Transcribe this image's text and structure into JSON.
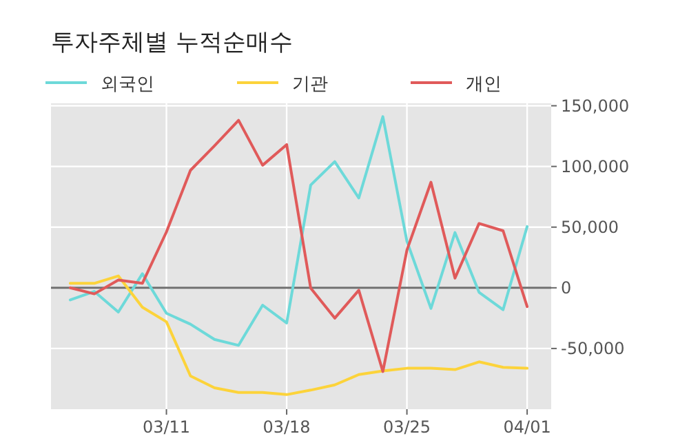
{
  "chart_data": {
    "type": "line",
    "title": "투자주체별 누적순매수",
    "categories": [
      null,
      null,
      null,
      null,
      "03/11",
      null,
      null,
      null,
      null,
      "03/18",
      null,
      null,
      null,
      null,
      "03/25",
      null,
      null,
      null,
      null,
      "04/01"
    ],
    "series": [
      {
        "name": "외국인",
        "color": "#6dd9d9",
        "values": [
          -10000,
          -3000,
          -20000,
          11600,
          -21000,
          -30000,
          -42500,
          -47400,
          -14300,
          -29000,
          84700,
          104000,
          74000,
          141000,
          38400,
          -17000,
          45500,
          -3700,
          -18000,
          50500
        ]
      },
      {
        "name": "기관",
        "color": "#fcd33a",
        "values": [
          3700,
          3700,
          9800,
          -16000,
          -28000,
          -72600,
          -82400,
          -86200,
          -86200,
          -88000,
          -84300,
          -80000,
          -71500,
          -68500,
          -66300,
          -66300,
          -67400,
          -61000,
          -65500,
          -66300
        ]
      },
      {
        "name": "개인",
        "color": "#e05a5a",
        "values": [
          0,
          -5000,
          6400,
          3700,
          46000,
          96800,
          117000,
          138000,
          101000,
          118000,
          -300,
          -25000,
          -2000,
          -69000,
          31000,
          87000,
          8000,
          53000,
          47000,
          -15500
        ]
      }
    ],
    "ylim": [
      -100000,
      152000
    ],
    "yticks": [
      {
        "value": -50000,
        "label": "-50,000"
      },
      {
        "value": 0,
        "label": "0"
      },
      {
        "value": 50000,
        "label": "50,000"
      },
      {
        "value": 100000,
        "label": "100,000"
      },
      {
        "value": 150000,
        "label": "150,000"
      }
    ],
    "ref_lines": [
      {
        "axis": "y",
        "value": 0,
        "color": "#707070"
      }
    ],
    "grid": true,
    "legend": "top left"
  }
}
